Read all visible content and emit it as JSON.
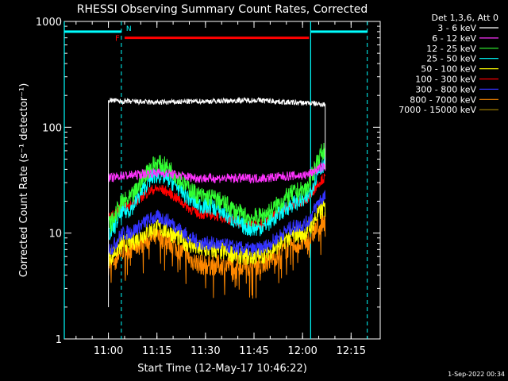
{
  "chart_data": {
    "type": "line",
    "title": "RHESSI Observing Summary Count Rates, Corrected",
    "xlabel": "Start Time (12-May-17 10:46:22)",
    "ylabel": "Corrected Count Rate (s⁻¹ detector⁻¹)",
    "y_scale": "log",
    "ylim": [
      1,
      1000
    ],
    "xlim": [
      "10:46:22",
      "12:24:00"
    ],
    "x_ticks": [
      "11:00",
      "11:15",
      "11:30",
      "11:45",
      "12:00",
      "12:15"
    ],
    "y_ticks": [
      "1",
      "10",
      "100",
      "1000"
    ],
    "grid": false,
    "legend_title": "Det 1,3,6, Att 0",
    "legend_position": "right",
    "footer_date": "1-Sep-2022 00:34",
    "data_start": "11:00",
    "data_end": "12:07",
    "series": [
      {
        "name": "3 - 6 keV",
        "color": "#ffffff",
        "time": [
          "11:00",
          "11:05",
          "11:15",
          "11:30",
          "11:45",
          "12:00",
          "12:07"
        ],
        "values": [
          180,
          175,
          172,
          176,
          180,
          170,
          165
        ]
      },
      {
        "name": "6 - 12 keV",
        "color": "#ff33ff",
        "time": [
          "11:00",
          "11:05",
          "11:15",
          "11:30",
          "11:45",
          "12:00",
          "12:07"
        ],
        "values": [
          33,
          35,
          37,
          33,
          33,
          35,
          42
        ]
      },
      {
        "name": "12 - 25 keV",
        "color": "#33ff33",
        "time": [
          "11:00",
          "11:05",
          "11:15",
          "11:30",
          "11:45",
          "12:00",
          "12:07"
        ],
        "values": [
          12,
          20,
          45,
          22,
          14,
          25,
          60
        ]
      },
      {
        "name": "25 - 50 keV",
        "color": "#00ffff",
        "time": [
          "11:00",
          "11:05",
          "11:15",
          "11:30",
          "11:45",
          "12:00",
          "12:07"
        ],
        "values": [
          10,
          16,
          35,
          18,
          11,
          20,
          45
        ]
      },
      {
        "name": "50 - 100 keV",
        "color": "#ffff00",
        "time": [
          "11:00",
          "11:05",
          "11:15",
          "11:30",
          "11:45",
          "12:00",
          "12:07"
        ],
        "values": [
          6,
          8,
          11,
          7,
          6,
          10,
          17
        ]
      },
      {
        "name": "100 - 300 keV",
        "color": "#ff0000",
        "time": [
          "11:00",
          "11:05",
          "11:15",
          "11:30",
          "11:45",
          "12:00",
          "12:07"
        ],
        "values": [
          14,
          18,
          26,
          15,
          12,
          20,
          33
        ]
      },
      {
        "name": "300 - 800 keV",
        "color": "#3333ff",
        "time": [
          "11:00",
          "11:05",
          "11:15",
          "11:30",
          "11:45",
          "12:00",
          "12:07"
        ],
        "values": [
          7,
          10,
          14,
          8,
          7,
          12,
          22
        ]
      },
      {
        "name": "800 - 7000 keV",
        "color": "#ff8800",
        "time": [
          "11:00",
          "11:05",
          "11:15",
          "11:30",
          "11:45",
          "12:00",
          "12:07"
        ],
        "values": [
          5,
          7,
          9,
          5,
          5,
          8,
          13
        ]
      },
      {
        "name": "7000 - 15000 keV",
        "color": "#aa8800",
        "time": [
          "11:00",
          "12:07"
        ],
        "values": [
          null,
          null
        ]
      }
    ],
    "annotations": {
      "vertical_lines_solid": [
        "10:46:22",
        "12:02:30"
      ],
      "vertical_lines_dashed": [
        "11:04:00",
        "12:20:00"
      ],
      "flare_bar": {
        "label": "F",
        "start": "11:05",
        "end": "12:02",
        "level": 700,
        "color": "#ff0000"
      },
      "night_bars": {
        "label": "N",
        "segments": [
          [
            "10:46:22",
            "11:04:00"
          ],
          [
            "12:02:30",
            "12:20:00"
          ]
        ],
        "level": 800,
        "color": "#00ffff"
      }
    }
  }
}
